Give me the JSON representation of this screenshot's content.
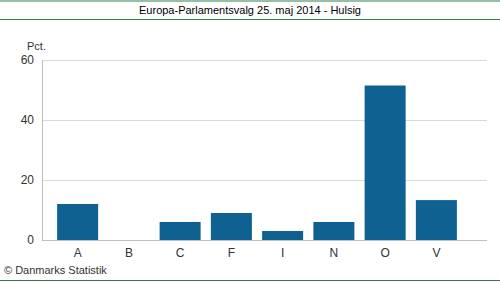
{
  "chart_data": {
    "type": "bar",
    "title": "Europa-Parlamentsvalg 25. maj 2014 - Hulsig",
    "y_label": "Pct.",
    "footer": "© Danmarks Statistik",
    "categories": [
      "A",
      "B",
      "C",
      "F",
      "I",
      "N",
      "O",
      "V"
    ],
    "values": [
      12,
      0,
      6,
      9,
      3,
      6,
      51.5,
      13.3
    ],
    "color": "#0f6192",
    "ylim": [
      0,
      60
    ],
    "yticks": [
      0,
      20,
      40,
      60
    ],
    "grid": true
  }
}
